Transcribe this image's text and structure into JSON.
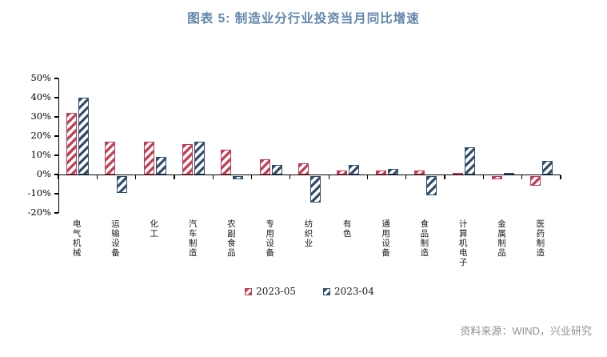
{
  "title": "图表 5: 制造业分行业投资当月同比增速",
  "source": "资料来源：WIND，兴业研究",
  "colors": {
    "title_blue": "#6186AC",
    "series_red": "#C53A52",
    "series_blue": "#2F4E6C",
    "axis": "#000000",
    "source_gray": "#909090"
  },
  "chart_data": {
    "type": "bar",
    "title": "图表 5: 制造业分行业投资当月同比增速",
    "categories": [
      "电气机械",
      "运输设备",
      "化工",
      "汽车制造",
      "农副食品",
      "专用设备",
      "纺织业",
      "有色",
      "通用设备",
      "食品制造",
      "计算机电子",
      "金属制品",
      "医药制造"
    ],
    "series": [
      {
        "name": "2023-05",
        "color": "#C53A52",
        "values": [
          32,
          17,
          17,
          16,
          13,
          8,
          6,
          2,
          2,
          2,
          1,
          -2,
          -5
        ]
      },
      {
        "name": "2023-04",
        "color": "#2F4E6C",
        "values": [
          40,
          -9,
          9,
          17,
          -2,
          5,
          -14,
          5,
          3,
          -10,
          14,
          1,
          7
        ]
      }
    ],
    "ylabel": "",
    "xlabel": "",
    "yticks": [
      50,
      40,
      30,
      20,
      10,
      0,
      -10,
      -20
    ],
    "ytick_format": "percent",
    "ylim": [
      -20,
      50
    ],
    "grid": false,
    "legend_position": "bottom",
    "bar_style": "diagonal-hatch"
  }
}
